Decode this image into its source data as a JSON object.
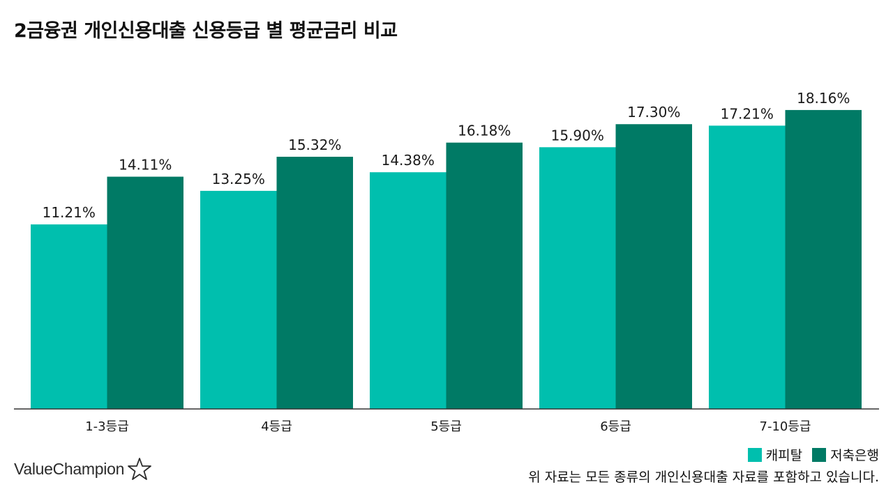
{
  "title": "2금융권 개인신용대출 신용등급 별 평균금리 비교",
  "colors": {
    "capital": "#00BFAE",
    "savings_bank": "#007A65",
    "axis": "#333333",
    "text": "#1a1a1a"
  },
  "chart_data": {
    "type": "bar",
    "title": "2금융권 개인신용대출 신용등급 별 평균금리 비교",
    "categories": [
      "1-3등급",
      "4등급",
      "5등급",
      "6등급",
      "7-10등급"
    ],
    "series": [
      {
        "name": "캐피탈",
        "values": [
          11.21,
          13.25,
          14.38,
          15.9,
          17.21
        ],
        "labels": [
          "11.21%",
          "13.25%",
          "14.38%",
          "15.90%",
          "17.21%"
        ]
      },
      {
        "name": "저축은행",
        "values": [
          14.11,
          15.32,
          16.18,
          17.3,
          18.16
        ],
        "labels": [
          "14.11%",
          "15.32%",
          "16.18%",
          "17.30%",
          "18.16%"
        ]
      }
    ],
    "ylim": [
      0,
      21.5
    ],
    "grid": false,
    "legend_position": "bottom-right"
  },
  "legend": {
    "items": [
      "캐피탈",
      "저축은행"
    ]
  },
  "footnote": "위 자료는 모든 종류의 개인신용대출 자료를 포함하고 있습니다.",
  "brand": {
    "name": "ValueChampion",
    "icon": "star-outline-icon"
  }
}
